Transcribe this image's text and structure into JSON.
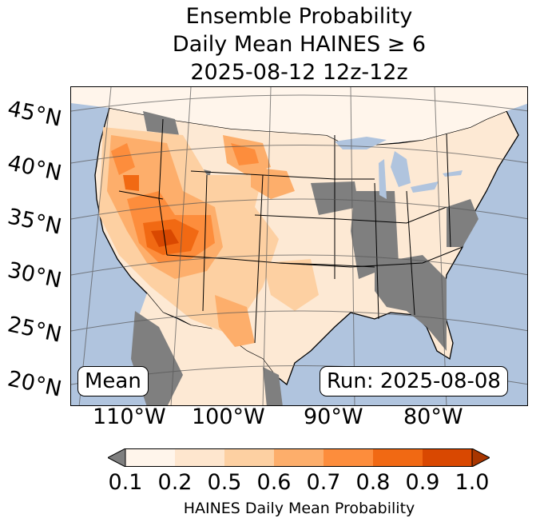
{
  "title": {
    "line1": "Ensemble Probability",
    "line2": "Daily Mean HAINES ≥ 6",
    "line3": "2025-08-12 12z-12z"
  },
  "map": {
    "ocean_color": "#b0c4de",
    "land_low_color": "#ffffff",
    "missing_color": "#7f7f7f",
    "lat_labels": [
      "45°N",
      "40°N",
      "35°N",
      "30°N",
      "25°N",
      "20°N"
    ],
    "lon_labels": [
      "110°W",
      "100°W",
      "90°W",
      "80°W"
    ]
  },
  "annotations": {
    "left": "Mean",
    "right": "Run: 2025-08-08"
  },
  "colorbar": {
    "label": "HAINES Daily Mean Probability",
    "ticks": [
      "0.1",
      "0.2",
      "0.5",
      "0.6",
      "0.7",
      "0.8",
      "0.9",
      "1.0"
    ],
    "under_color": "#7f7f7f",
    "over_color": "#a83600",
    "colors": [
      "#fff5eb",
      "#fee6ce",
      "#fdd0a2",
      "#fdae6b",
      "#fd8d3c",
      "#f16913",
      "#d94801"
    ]
  }
}
